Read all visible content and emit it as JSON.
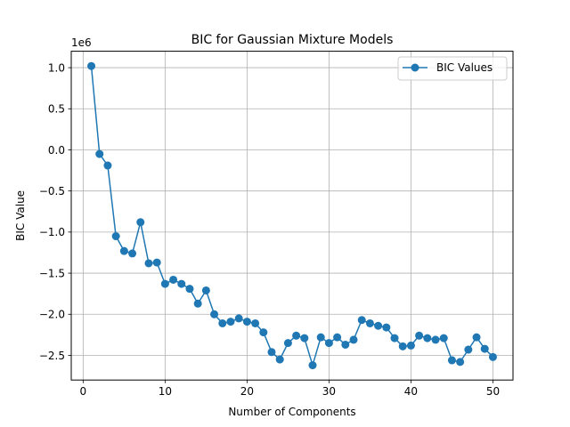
{
  "chart_data": {
    "type": "line",
    "title": "BIC for Gaussian Mixture Models",
    "xlabel": "Number of Components",
    "ylabel": "BIC Value",
    "y_scale_label": "1e6",
    "xlim": [
      -1.45,
      52.45
    ],
    "ylim": [
      -2.8,
      1.2
    ],
    "x_ticks": [
      0,
      10,
      20,
      30,
      40,
      50
    ],
    "x_tick_labels": [
      "0",
      "10",
      "20",
      "30",
      "40",
      "50"
    ],
    "y_ticks": [
      1.0,
      0.5,
      0.0,
      -0.5,
      -1.0,
      -1.5,
      -2.0,
      -2.5
    ],
    "y_tick_labels": [
      "1.0",
      "0.5",
      "0.0",
      "−0.5",
      "−1.0",
      "−1.5",
      "−2.0",
      "−2.5"
    ],
    "grid": true,
    "legend_position": "top-right",
    "series": [
      {
        "name": "BIC Values",
        "color": "#1f77b4",
        "marker": "circle",
        "x": [
          1,
          2,
          3,
          4,
          5,
          6,
          7,
          8,
          9,
          10,
          11,
          12,
          13,
          14,
          15,
          16,
          17,
          18,
          19,
          20,
          21,
          22,
          23,
          24,
          25,
          26,
          27,
          28,
          29,
          30,
          31,
          32,
          33,
          34,
          35,
          36,
          37,
          38,
          39,
          40,
          41,
          42,
          43,
          44,
          45,
          46,
          47,
          48,
          49,
          50
        ],
        "y": [
          1.02,
          -0.05,
          -0.19,
          -1.05,
          -1.23,
          -1.26,
          -0.88,
          -1.38,
          -1.37,
          -1.63,
          -1.58,
          -1.63,
          -1.69,
          -1.87,
          -1.71,
          -2.0,
          -2.11,
          -2.09,
          -2.05,
          -2.09,
          -2.11,
          -2.22,
          -2.46,
          -2.55,
          -2.35,
          -2.26,
          -2.29,
          -2.62,
          -2.28,
          -2.35,
          -2.28,
          -2.37,
          -2.31,
          -2.07,
          -2.11,
          -2.14,
          -2.16,
          -2.29,
          -2.39,
          -2.38,
          -2.26,
          -2.29,
          -2.31,
          -2.29,
          -2.56,
          -2.58,
          -2.43,
          -2.28,
          -2.42,
          -2.52
        ]
      }
    ]
  }
}
